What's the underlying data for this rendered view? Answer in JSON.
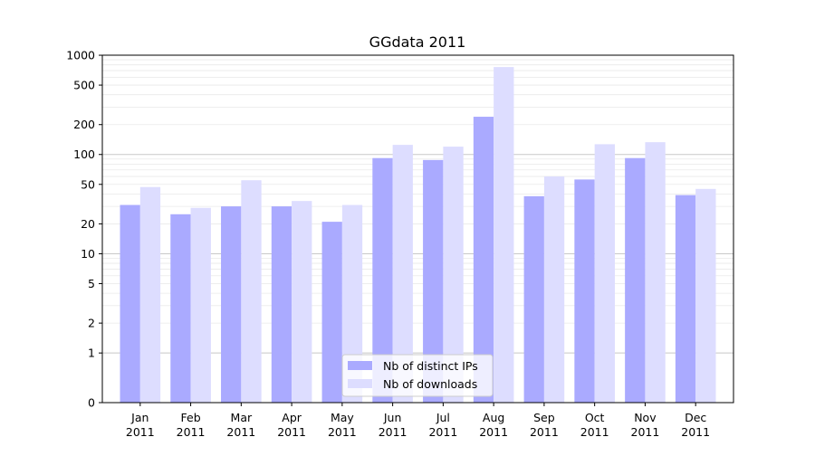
{
  "chart_data": {
    "type": "bar",
    "title": "GGdata 2011",
    "xlabel": "",
    "ylabel": "",
    "yscale": "symlog",
    "ylim": [
      0,
      1000
    ],
    "y_ticks": [
      "0",
      "1",
      "2",
      "5",
      "10",
      "20",
      "50",
      "100",
      "200",
      "500",
      "1000"
    ],
    "categories": [
      {
        "month": "Jan",
        "year": "2011"
      },
      {
        "month": "Feb",
        "year": "2011"
      },
      {
        "month": "Mar",
        "year": "2011"
      },
      {
        "month": "Apr",
        "year": "2011"
      },
      {
        "month": "May",
        "year": "2011"
      },
      {
        "month": "Jun",
        "year": "2011"
      },
      {
        "month": "Jul",
        "year": "2011"
      },
      {
        "month": "Aug",
        "year": "2011"
      },
      {
        "month": "Sep",
        "year": "2011"
      },
      {
        "month": "Oct",
        "year": "2011"
      },
      {
        "month": "Nov",
        "year": "2011"
      },
      {
        "month": "Dec",
        "year": "2011"
      }
    ],
    "series": [
      {
        "name": "Nb of distinct IPs",
        "color": "#aaaaff",
        "values": [
          31,
          25,
          30,
          30,
          21,
          92,
          88,
          240,
          38,
          56,
          92,
          39
        ]
      },
      {
        "name": "Nb of downloads",
        "color": "#ddddff",
        "values": [
          47,
          29,
          55,
          34,
          31,
          125,
          120,
          760,
          60,
          127,
          133,
          45
        ]
      }
    ],
    "grid": true,
    "legend_position": "lower-center"
  }
}
